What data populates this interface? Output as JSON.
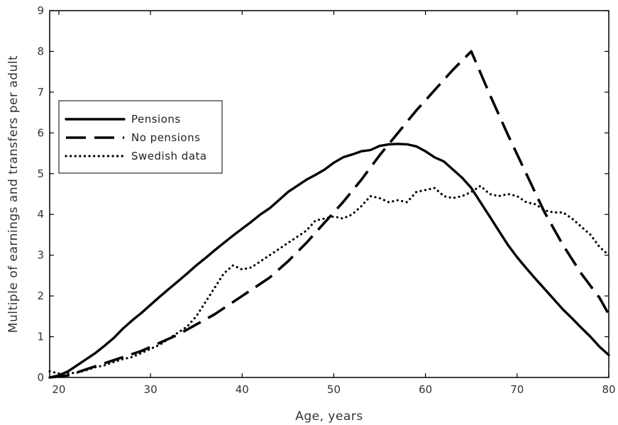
{
  "chart_data": {
    "type": "line",
    "title": "",
    "xlabel": "Age, years",
    "ylabel": "Multiple of earnings and transfers per adult",
    "xlim": [
      19,
      80
    ],
    "ylim": [
      0,
      9
    ],
    "xticks": [
      20,
      30,
      40,
      50,
      60,
      70,
      80
    ],
    "yticks": [
      0,
      1,
      2,
      3,
      4,
      5,
      6,
      7,
      8,
      9
    ],
    "grid": false,
    "legend_position": "left",
    "colors": {
      "line": "#000000",
      "frame": "#000000",
      "background": "#ffffff"
    },
    "series": [
      {
        "name": "Pensions",
        "style": "solid",
        "x": [
          19,
          20,
          21,
          22,
          23,
          24,
          25,
          26,
          27,
          28,
          29,
          30,
          31,
          32,
          33,
          34,
          35,
          36,
          37,
          38,
          39,
          40,
          41,
          42,
          43,
          44,
          45,
          46,
          47,
          48,
          49,
          50,
          51,
          52,
          53,
          54,
          55,
          56,
          57,
          58,
          59,
          60,
          61,
          62,
          63,
          64,
          65,
          66,
          67,
          68,
          69,
          70,
          71,
          72,
          73,
          74,
          75,
          76,
          77,
          78,
          79,
          80
        ],
        "values": [
          0,
          0.05,
          0.15,
          0.3,
          0.45,
          0.6,
          0.78,
          0.97,
          1.2,
          1.4,
          1.58,
          1.78,
          1.98,
          2.17,
          2.36,
          2.55,
          2.75,
          2.93,
          3.12,
          3.3,
          3.48,
          3.65,
          3.82,
          4.0,
          4.15,
          4.35,
          4.55,
          4.7,
          4.85,
          4.97,
          5.1,
          5.27,
          5.4,
          5.47,
          5.55,
          5.58,
          5.68,
          5.72,
          5.73,
          5.72,
          5.67,
          5.55,
          5.4,
          5.3,
          5.1,
          4.9,
          4.65,
          4.3,
          3.95,
          3.6,
          3.25,
          2.95,
          2.68,
          2.42,
          2.17,
          1.92,
          1.67,
          1.45,
          1.22,
          1.0,
          0.75,
          0.55
        ]
      },
      {
        "name": "No pensions",
        "style": "dashed",
        "x": [
          19,
          21,
          23,
          25,
          27,
          29,
          31,
          33,
          35,
          37,
          39,
          41,
          43,
          45,
          47,
          49,
          51,
          53,
          55,
          57,
          59,
          61,
          63,
          65,
          67,
          69,
          71,
          73,
          75,
          77,
          79,
          80
        ],
        "values": [
          0,
          0.05,
          0.2,
          0.35,
          0.5,
          0.65,
          0.85,
          1.05,
          1.3,
          1.55,
          1.85,
          2.15,
          2.45,
          2.85,
          3.3,
          3.8,
          4.3,
          4.85,
          5.45,
          6.0,
          6.55,
          7.05,
          7.55,
          8.0,
          6.95,
          5.95,
          5.0,
          4.05,
          3.25,
          2.55,
          1.95,
          1.55
        ]
      },
      {
        "name": "Swedish data",
        "style": "dotted",
        "x": [
          19,
          20,
          21,
          22,
          23,
          24,
          25,
          26,
          27,
          28,
          29,
          30,
          31,
          32,
          33,
          34,
          35,
          36,
          37,
          38,
          39,
          40,
          41,
          42,
          43,
          44,
          45,
          46,
          47,
          48,
          49,
          50,
          51,
          52,
          53,
          54,
          55,
          56,
          57,
          58,
          59,
          60,
          61,
          62,
          63,
          64,
          65,
          66,
          67,
          68,
          69,
          70,
          71,
          72,
          73,
          74,
          75,
          76,
          77,
          78,
          79,
          80
        ],
        "values": [
          0.15,
          0.1,
          0.1,
          0.12,
          0.18,
          0.25,
          0.3,
          0.38,
          0.45,
          0.5,
          0.6,
          0.7,
          0.8,
          0.95,
          1.1,
          1.25,
          1.5,
          1.85,
          2.2,
          2.55,
          2.75,
          2.65,
          2.7,
          2.85,
          3.0,
          3.15,
          3.3,
          3.45,
          3.6,
          3.85,
          3.9,
          3.95,
          3.9,
          4.0,
          4.2,
          4.45,
          4.4,
          4.3,
          4.35,
          4.3,
          4.55,
          4.6,
          4.65,
          4.45,
          4.4,
          4.45,
          4.55,
          4.7,
          4.5,
          4.45,
          4.5,
          4.45,
          4.3,
          4.25,
          4.1,
          4.05,
          4.05,
          3.9,
          3.7,
          3.5,
          3.2,
          3.0
        ]
      }
    ]
  }
}
